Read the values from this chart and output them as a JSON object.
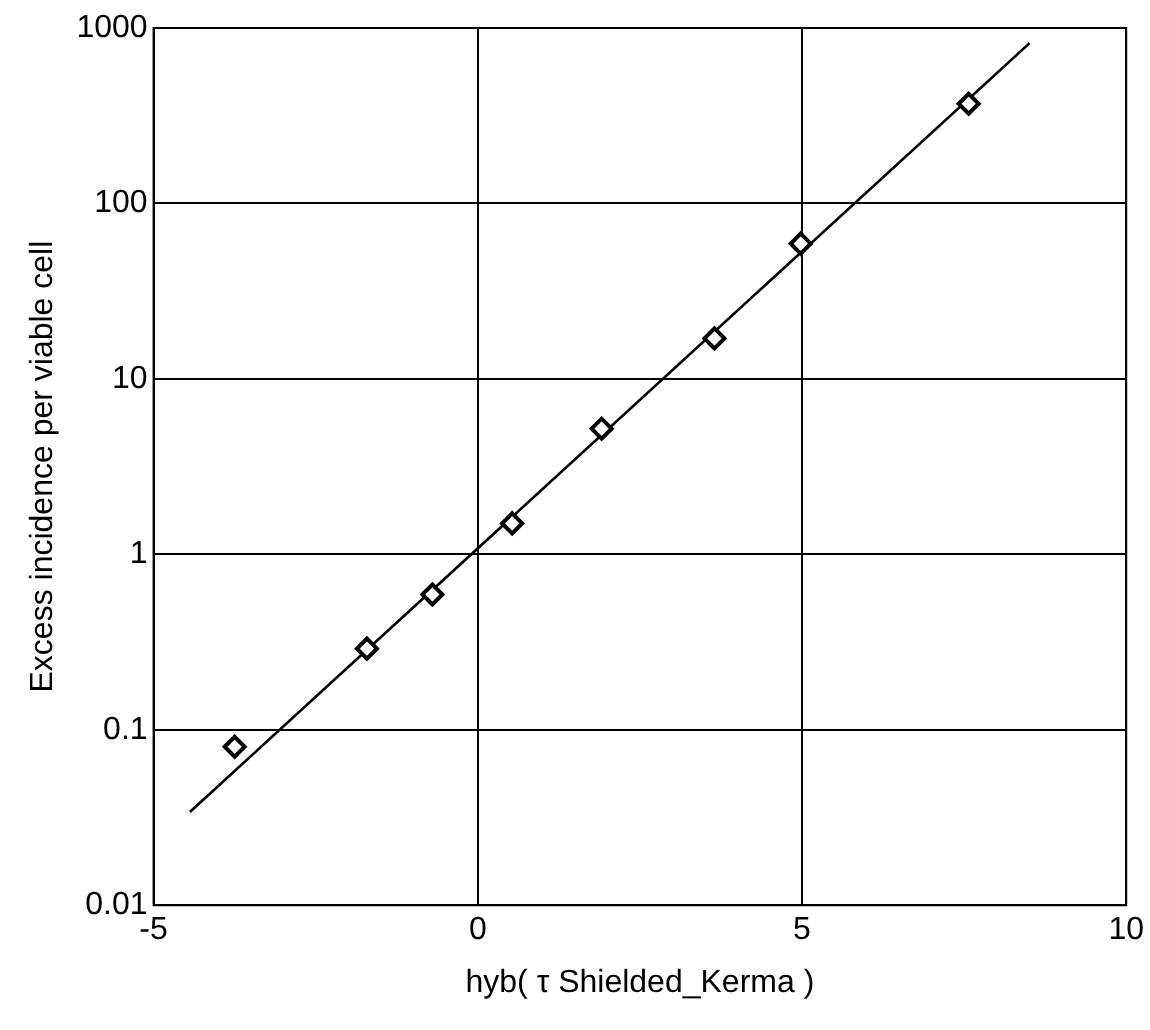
{
  "chart_data": {
    "type": "scatter",
    "xlabel": "hyb( τ Shielded_Kerma )",
    "ylabel": "Excess incidence per viable cell",
    "xlim": [
      -5,
      10
    ],
    "xticks": [
      -5,
      0,
      5,
      10
    ],
    "ylim": [
      0.01,
      1000
    ],
    "yticks": [
      0.01,
      0.1,
      1,
      10,
      100,
      1000
    ],
    "log": "y",
    "grid": true,
    "legend": false,
    "marker": "diamond",
    "series": [
      {
        "color": "#000000",
        "x": [
          -3.75,
          -1.71,
          -0.7,
          0.53,
          1.91,
          3.65,
          4.98,
          7.57
        ],
        "values": [
          0.08,
          0.29,
          0.59,
          1.5,
          5.2,
          17,
          59,
          370
        ]
      },
      {
        "type": "line",
        "color": "#000000",
        "marker": "none",
        "x": [
          -4.44,
          8.51
        ],
        "values": [
          0.034,
          820
        ]
      }
    ]
  }
}
